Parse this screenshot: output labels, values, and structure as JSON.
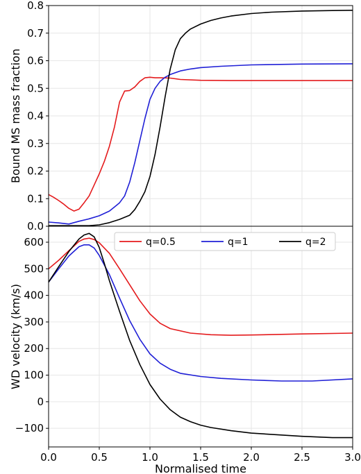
{
  "chart_data": [
    {
      "type": "line",
      "title": "",
      "xlabel": "",
      "ylabel": "Bound MS mass fraction",
      "xlim": [
        0,
        3.0
      ],
      "ylim": [
        0,
        0.8
      ],
      "xticks": [
        0.0,
        0.5,
        1.0,
        1.5,
        2.0,
        2.5,
        3.0
      ],
      "xtick_labels": [
        "",
        "",
        "",
        "",
        "",
        "",
        ""
      ],
      "yticks": [
        0.0,
        0.1,
        0.2,
        0.3,
        0.4,
        0.5,
        0.6,
        0.7,
        0.8
      ],
      "ytick_labels": [
        "0.0",
        "0.1",
        "0.2",
        "0.3",
        "0.4",
        "0.5",
        "0.6",
        "0.7",
        "0.8"
      ],
      "grid": true,
      "legend": null,
      "series": [
        {
          "name": "q=0.5",
          "color": "#e41a1c",
          "x": [
            0.0,
            0.05,
            0.1,
            0.15,
            0.2,
            0.25,
            0.3,
            0.35,
            0.4,
            0.45,
            0.5,
            0.55,
            0.6,
            0.65,
            0.7,
            0.75,
            0.8,
            0.85,
            0.9,
            0.95,
            1.0,
            1.05,
            1.1,
            1.2,
            1.3,
            1.5,
            1.8,
            2.0,
            2.5,
            3.0
          ],
          "y": [
            0.115,
            0.105,
            0.093,
            0.08,
            0.065,
            0.055,
            0.062,
            0.085,
            0.11,
            0.15,
            0.19,
            0.235,
            0.29,
            0.36,
            0.45,
            0.49,
            0.492,
            0.505,
            0.525,
            0.538,
            0.54,
            0.538,
            0.538,
            0.537,
            0.532,
            0.529,
            0.528,
            0.528,
            0.528,
            0.528
          ]
        },
        {
          "name": "q=1",
          "color": "#1f1fd6",
          "x": [
            0.0,
            0.1,
            0.2,
            0.3,
            0.4,
            0.5,
            0.6,
            0.65,
            0.7,
            0.75,
            0.8,
            0.85,
            0.9,
            0.95,
            1.0,
            1.05,
            1.1,
            1.15,
            1.2,
            1.3,
            1.4,
            1.5,
            1.7,
            2.0,
            2.5,
            3.0
          ],
          "y": [
            0.015,
            0.012,
            0.008,
            0.018,
            0.027,
            0.038,
            0.055,
            0.07,
            0.085,
            0.11,
            0.16,
            0.23,
            0.31,
            0.39,
            0.46,
            0.5,
            0.525,
            0.54,
            0.55,
            0.563,
            0.57,
            0.575,
            0.58,
            0.585,
            0.588,
            0.589
          ]
        },
        {
          "name": "q=2",
          "color": "#000000",
          "x": [
            0.0,
            0.2,
            0.4,
            0.5,
            0.6,
            0.7,
            0.8,
            0.85,
            0.9,
            0.95,
            1.0,
            1.05,
            1.1,
            1.15,
            1.2,
            1.25,
            1.3,
            1.35,
            1.4,
            1.5,
            1.6,
            1.7,
            1.8,
            2.0,
            2.2,
            2.5,
            2.8,
            3.0
          ],
          "y": [
            0.002,
            0.002,
            0.002,
            0.005,
            0.013,
            0.025,
            0.04,
            0.06,
            0.09,
            0.125,
            0.18,
            0.26,
            0.36,
            0.47,
            0.57,
            0.64,
            0.68,
            0.7,
            0.715,
            0.733,
            0.746,
            0.755,
            0.762,
            0.771,
            0.776,
            0.78,
            0.782,
            0.783
          ]
        }
      ]
    },
    {
      "type": "line",
      "title": "",
      "xlabel": "Normalised time",
      "ylabel": "WD velocity (km/s)",
      "xlim": [
        0,
        3.0
      ],
      "ylim": [
        -170,
        660
      ],
      "xticks": [
        0.0,
        0.5,
        1.0,
        1.5,
        2.0,
        2.5,
        3.0
      ],
      "xtick_labels": [
        "0.0",
        "0.5",
        "1.0",
        "1.5",
        "2.0",
        "2.5",
        "3.0"
      ],
      "yticks": [
        -100,
        0,
        100,
        200,
        300,
        400,
        500,
        600
      ],
      "ytick_labels": [
        "−100",
        "0",
        "100",
        "200",
        "300",
        "400",
        "500",
        "600"
      ],
      "grid": true,
      "legend": "top",
      "series": [
        {
          "name": "q=0.5",
          "color": "#e41a1c",
          "x": [
            0.0,
            0.1,
            0.2,
            0.3,
            0.35,
            0.4,
            0.45,
            0.5,
            0.6,
            0.7,
            0.8,
            0.9,
            1.0,
            1.1,
            1.2,
            1.4,
            1.6,
            1.8,
            2.0,
            2.5,
            3.0
          ],
          "y": [
            500,
            532,
            568,
            603,
            612,
            615,
            610,
            598,
            558,
            500,
            440,
            380,
            330,
            295,
            275,
            258,
            252,
            250,
            251,
            255,
            258
          ]
        },
        {
          "name": "q=1",
          "color": "#1f1fd6",
          "x": [
            0.0,
            0.1,
            0.2,
            0.3,
            0.35,
            0.4,
            0.45,
            0.5,
            0.6,
            0.7,
            0.8,
            0.9,
            1.0,
            1.1,
            1.2,
            1.3,
            1.5,
            1.7,
            2.0,
            2.3,
            2.6,
            3.0
          ],
          "y": [
            450,
            500,
            548,
            583,
            590,
            590,
            578,
            550,
            478,
            390,
            305,
            235,
            180,
            145,
            122,
            107,
            95,
            88,
            82,
            78,
            78,
            86
          ]
        },
        {
          "name": "q=2",
          "color": "#000000",
          "x": [
            0.0,
            0.1,
            0.2,
            0.3,
            0.35,
            0.4,
            0.45,
            0.5,
            0.55,
            0.6,
            0.7,
            0.8,
            0.9,
            1.0,
            1.1,
            1.2,
            1.3,
            1.4,
            1.5,
            1.6,
            1.8,
            2.0,
            2.5,
            2.8,
            3.0
          ],
          "y": [
            450,
            508,
            565,
            612,
            627,
            633,
            620,
            580,
            520,
            455,
            340,
            230,
            140,
            65,
            10,
            -30,
            -58,
            -75,
            -88,
            -97,
            -109,
            -118,
            -130,
            -135,
            -135
          ]
        }
      ]
    }
  ]
}
